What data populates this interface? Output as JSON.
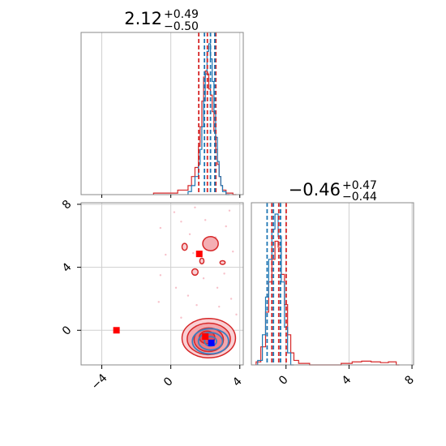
{
  "chart_data": [
    {
      "type": "histogram",
      "panel": "top-left",
      "title": {
        "value": "2.12",
        "upper": "+0.49",
        "lower": "−0.50"
      },
      "xlim": [
        -5.2,
        4.2
      ],
      "grid": true,
      "grid_x": [
        -4,
        0,
        4
      ],
      "series": [
        {
          "color": "#d62728",
          "x": [
            -1.0,
            0.4,
            1.0,
            1.2,
            1.4,
            1.6,
            1.7,
            1.8,
            1.9,
            2.0,
            2.1,
            2.2,
            2.3,
            2.4,
            2.5,
            2.6,
            2.7,
            2.8,
            2.9,
            3.0,
            3.2,
            3.6
          ],
          "y": [
            0.01,
            0.03,
            0.06,
            0.12,
            0.18,
            0.32,
            0.45,
            0.62,
            0.78,
            0.82,
            0.8,
            0.7,
            0.66,
            0.55,
            0.42,
            0.3,
            0.2,
            0.12,
            0.06,
            0.03,
            0.01,
            0.0
          ]
        },
        {
          "color": "#1f77b4",
          "x": [
            1.0,
            1.2,
            1.4,
            1.6,
            1.7,
            1.8,
            1.9,
            2.0,
            2.1,
            2.2,
            2.3,
            2.4,
            2.5,
            2.6,
            2.7,
            2.8,
            2.9,
            3.0,
            3.2
          ],
          "y": [
            0.02,
            0.06,
            0.12,
            0.2,
            0.3,
            0.45,
            0.62,
            0.8,
            0.95,
            1.0,
            0.9,
            0.75,
            0.55,
            0.38,
            0.22,
            0.12,
            0.06,
            0.02,
            0.0
          ]
        }
      ],
      "quantile_lines": [
        {
          "x": 1.62,
          "color": "#d62728"
        },
        {
          "x": 2.12,
          "color": "#d62728"
        },
        {
          "x": 2.61,
          "color": "#d62728"
        },
        {
          "x": 1.95,
          "color": "#1f77b4"
        },
        {
          "x": 2.3,
          "color": "#1f77b4"
        },
        {
          "x": 2.55,
          "color": "#1f77b4"
        }
      ]
    },
    {
      "type": "contour-scatter",
      "panel": "bottom-left",
      "xlim": [
        -5.2,
        4.2
      ],
      "ylim": [
        -2.2,
        8.1
      ],
      "xticks": [
        "−4",
        "0",
        "4"
      ],
      "xtick_values": [
        -4,
        0,
        4
      ],
      "yticks": [
        "0",
        "4",
        "8"
      ],
      "ytick_values": [
        0,
        4,
        8
      ],
      "grid": true,
      "red_contours": [
        {
          "cx": 2.2,
          "cy": -0.5,
          "rx": 1.55,
          "ry": 1.25,
          "level": 1
        },
        {
          "cx": 2.2,
          "cy": -0.55,
          "rx": 1.25,
          "ry": 1.0,
          "level": 2
        },
        {
          "cx": 2.2,
          "cy": -0.6,
          "rx": 0.85,
          "ry": 0.75,
          "level": 3
        },
        {
          "cx": 2.1,
          "cy": -0.45,
          "rx": 0.45,
          "ry": 0.4,
          "level": 4
        },
        {
          "cx": 2.3,
          "cy": 5.5,
          "rx": 0.45,
          "ry": 0.45,
          "level": 2
        },
        {
          "cx": 0.8,
          "cy": 5.3,
          "rx": 0.15,
          "ry": 0.22,
          "level": 1
        },
        {
          "cx": 1.4,
          "cy": 3.7,
          "rx": 0.18,
          "ry": 0.2,
          "level": 1
        },
        {
          "cx": 1.8,
          "cy": 4.4,
          "rx": 0.12,
          "ry": 0.18,
          "level": 1
        },
        {
          "cx": 3.0,
          "cy": 4.3,
          "rx": 0.15,
          "ry": 0.12,
          "level": 1
        }
      ],
      "blue_contours": [
        {
          "cx": 2.3,
          "cy": -0.7,
          "rx": 1.05,
          "ry": 0.8
        },
        {
          "cx": 2.3,
          "cy": -0.7,
          "rx": 0.7,
          "ry": 0.55
        },
        {
          "cx": 2.3,
          "cy": -0.7,
          "rx": 0.35,
          "ry": 0.3
        }
      ],
      "scatter_points": [
        [
          -0.6,
          6.5
        ],
        [
          0.2,
          7.5
        ],
        [
          1.4,
          7.8
        ],
        [
          2.0,
          7.0
        ],
        [
          3.4,
          7.6
        ],
        [
          3.2,
          6.6
        ],
        [
          1.1,
          6.1
        ],
        [
          0.6,
          6.9
        ],
        [
          -0.3,
          4.8
        ],
        [
          1.9,
          3.3
        ],
        [
          -0.6,
          3.5
        ],
        [
          0.3,
          2.7
        ],
        [
          1.0,
          2.2
        ],
        [
          3.5,
          2.0
        ],
        [
          2.7,
          2.7
        ],
        [
          1.5,
          1.6
        ],
        [
          3.8,
          1.0
        ],
        [
          -0.7,
          1.8
        ],
        [
          0.6,
          0.8
        ],
        [
          3.6,
          5.0
        ],
        [
          2.6,
          5.9
        ],
        [
          1.3,
          4.9
        ],
        [
          3.1,
          3.6
        ],
        [
          2.8,
          1.5
        ]
      ],
      "markers": [
        {
          "x": -3.15,
          "y": 0.0,
          "color": "#ff0000"
        },
        {
          "x": 1.65,
          "y": 4.85,
          "color": "#ff0000"
        },
        {
          "x": 2.0,
          "y": -0.4,
          "color": "#ff0000"
        },
        {
          "x": 2.35,
          "y": -0.8,
          "color": "#0000ff"
        }
      ]
    },
    {
      "type": "histogram",
      "panel": "bottom-right",
      "title": {
        "value": "−0.46",
        "upper": "+0.47",
        "lower": "−0.44"
      },
      "xlim": [
        -2.2,
        8.1
      ],
      "xticks": [
        "0",
        "4",
        "8"
      ],
      "xtick_values": [
        0,
        4,
        8
      ],
      "grid": true,
      "series": [
        {
          "color": "#d62728",
          "x": [
            -1.9,
            -1.6,
            -1.3,
            -1.1,
            -0.9,
            -0.7,
            -0.5,
            -0.3,
            -0.1,
            0.1,
            0.3,
            0.5,
            0.8,
            1.5,
            3.5,
            4.2,
            4.8,
            5.4,
            6.0,
            6.5,
            7.0
          ],
          "y": [
            0.02,
            0.12,
            0.35,
            0.55,
            0.7,
            0.82,
            0.78,
            0.6,
            0.4,
            0.2,
            0.08,
            0.03,
            0.01,
            0.0,
            0.01,
            0.02,
            0.025,
            0.02,
            0.015,
            0.02,
            0.0
          ]
        },
        {
          "color": "#1f77b4",
          "x": [
            -1.8,
            -1.5,
            -1.3,
            -1.1,
            -0.9,
            -0.7,
            -0.5,
            -0.3,
            -0.1,
            0.1,
            0.3
          ],
          "y": [
            0.03,
            0.2,
            0.45,
            0.7,
            0.9,
            1.0,
            0.85,
            0.55,
            0.25,
            0.08,
            0.0
          ]
        }
      ],
      "quantile_lines": [
        {
          "x": -0.9,
          "color": "#d62728"
        },
        {
          "x": -0.46,
          "color": "#d62728"
        },
        {
          "x": 0.01,
          "color": "#d62728"
        },
        {
          "x": -1.2,
          "color": "#1f77b4"
        },
        {
          "x": -0.8,
          "color": "#1f77b4"
        },
        {
          "x": -0.35,
          "color": "#1f77b4"
        }
      ]
    }
  ]
}
